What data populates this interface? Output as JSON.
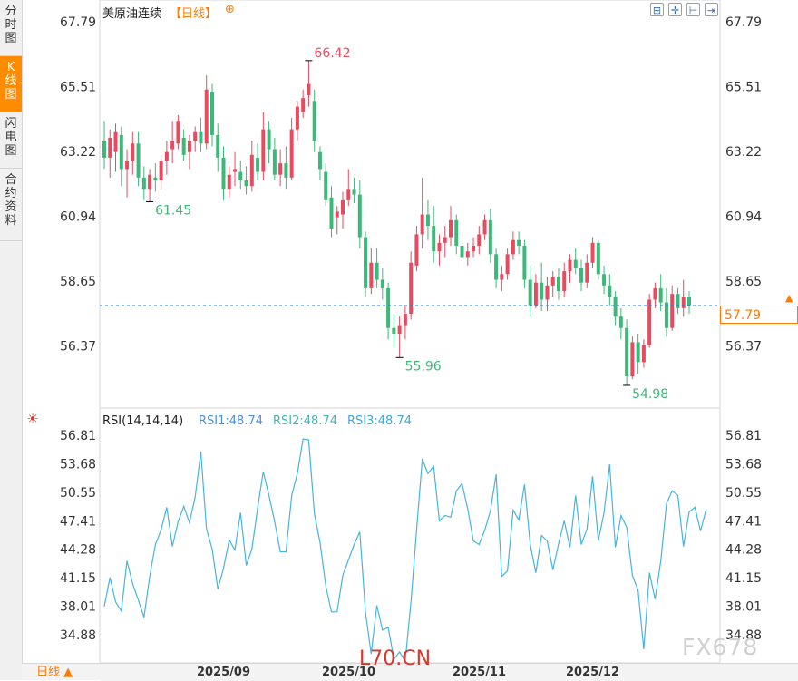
{
  "sidebar": {
    "tabs": [
      {
        "label": "分时图",
        "active": false
      },
      {
        "label": "K线图",
        "active": true
      },
      {
        "label": "闪电图",
        "active": false
      },
      {
        "label": "合约资料",
        "active": false
      }
    ]
  },
  "header": {
    "title": "美原油连续",
    "period": "【日线】",
    "add_symbol": "⊕",
    "toolbar_icons": [
      "fit-screen-icon",
      "crosshair-icon",
      "scroll-start-icon",
      "scroll-end-icon"
    ]
  },
  "price_axis": {
    "ticks": [
      "67.79",
      "65.51",
      "63.22",
      "60.94",
      "58.65",
      "56.37"
    ],
    "current_price": "57.79"
  },
  "annotations": {
    "high": "66.42",
    "left_low": "61.45",
    "mid_low": "55.96",
    "recent_low": "54.98"
  },
  "rsi": {
    "label": "RSI(14,14,14)",
    "rsi1": "RSI1:48.74",
    "rsi2": "RSI2:48.74",
    "rsi3": "RSI3:48.74",
    "ticks": [
      "56.81",
      "53.68",
      "50.55",
      "47.41",
      "44.28",
      "41.15",
      "38.01",
      "34.88"
    ]
  },
  "footer": {
    "period_button": "日线 ▲",
    "dates": [
      "2025/09",
      "2025/10",
      "2025/11",
      "2025/12"
    ]
  },
  "watermarks": {
    "site": "L70.CN",
    "brand": "FX678"
  },
  "colors": {
    "up": "#e84a5f",
    "down": "#3cb878",
    "rsi_line": "#45b4e0",
    "accent": "#ff7a00",
    "current_line": "#2a7fd4"
  },
  "chart_data": [
    {
      "type": "candlestick",
      "title": "美原油连续",
      "ylim": [
        54.5,
        68.3
      ],
      "x_labels": [
        "2025/09",
        "2025/10",
        "2025/11",
        "2025/12"
      ],
      "current_price": 57.79,
      "annotated_high": 66.42,
      "annotated_lows": [
        61.45,
        55.96,
        54.98
      ],
      "candles": [
        {
          "o": 63.6,
          "h": 64.3,
          "l": 62.6,
          "c": 63.0
        },
        {
          "o": 63.0,
          "h": 64.0,
          "l": 62.3,
          "c": 63.7
        },
        {
          "o": 63.2,
          "h": 64.2,
          "l": 62.5,
          "c": 63.9
        },
        {
          "o": 63.8,
          "h": 64.1,
          "l": 62.0,
          "c": 62.6
        },
        {
          "o": 62.6,
          "h": 63.3,
          "l": 61.6,
          "c": 62.9
        },
        {
          "o": 62.9,
          "h": 63.9,
          "l": 62.4,
          "c": 63.5
        },
        {
          "o": 63.5,
          "h": 63.9,
          "l": 62.0,
          "c": 62.3
        },
        {
          "o": 62.3,
          "h": 62.7,
          "l": 61.5,
          "c": 61.9
        },
        {
          "o": 61.9,
          "h": 62.6,
          "l": 61.45,
          "c": 62.4
        },
        {
          "o": 62.3,
          "h": 62.8,
          "l": 61.8,
          "c": 62.2
        },
        {
          "o": 62.2,
          "h": 63.1,
          "l": 61.9,
          "c": 62.9
        },
        {
          "o": 62.9,
          "h": 63.6,
          "l": 62.4,
          "c": 63.2
        },
        {
          "o": 63.3,
          "h": 64.3,
          "l": 62.8,
          "c": 63.6
        },
        {
          "o": 63.5,
          "h": 64.5,
          "l": 63.3,
          "c": 64.3
        },
        {
          "o": 63.7,
          "h": 64.0,
          "l": 62.9,
          "c": 63.1
        },
        {
          "o": 63.2,
          "h": 63.8,
          "l": 62.6,
          "c": 63.6
        },
        {
          "o": 63.6,
          "h": 64.1,
          "l": 63.2,
          "c": 63.9
        },
        {
          "o": 63.9,
          "h": 64.4,
          "l": 63.2,
          "c": 63.5
        },
        {
          "o": 63.5,
          "h": 65.9,
          "l": 63.3,
          "c": 65.4
        },
        {
          "o": 65.3,
          "h": 65.6,
          "l": 63.4,
          "c": 63.8
        },
        {
          "o": 63.8,
          "h": 64.2,
          "l": 62.5,
          "c": 63.0
        },
        {
          "o": 63.0,
          "h": 63.4,
          "l": 61.5,
          "c": 61.9
        },
        {
          "o": 61.9,
          "h": 62.7,
          "l": 61.6,
          "c": 62.4
        },
        {
          "o": 62.5,
          "h": 63.2,
          "l": 62.0,
          "c": 62.6
        },
        {
          "o": 62.5,
          "h": 62.9,
          "l": 61.9,
          "c": 62.2
        },
        {
          "o": 62.2,
          "h": 62.7,
          "l": 61.7,
          "c": 62.0
        },
        {
          "o": 62.0,
          "h": 63.6,
          "l": 61.8,
          "c": 63.1
        },
        {
          "o": 63.0,
          "h": 63.5,
          "l": 62.2,
          "c": 62.5
        },
        {
          "o": 62.5,
          "h": 64.6,
          "l": 62.2,
          "c": 64.0
        },
        {
          "o": 64.0,
          "h": 64.3,
          "l": 62.8,
          "c": 63.3
        },
        {
          "o": 63.3,
          "h": 63.7,
          "l": 62.2,
          "c": 62.4
        },
        {
          "o": 62.4,
          "h": 63.3,
          "l": 62.0,
          "c": 62.8
        },
        {
          "o": 62.8,
          "h": 63.4,
          "l": 61.9,
          "c": 62.3
        },
        {
          "o": 62.3,
          "h": 64.4,
          "l": 62.2,
          "c": 64.0
        },
        {
          "o": 64.0,
          "h": 65.0,
          "l": 63.6,
          "c": 64.8
        },
        {
          "o": 64.6,
          "h": 65.4,
          "l": 64.4,
          "c": 65.1
        },
        {
          "o": 65.2,
          "h": 66.42,
          "l": 64.8,
          "c": 65.6
        },
        {
          "o": 65.0,
          "h": 65.4,
          "l": 63.2,
          "c": 63.6
        },
        {
          "o": 63.2,
          "h": 63.4,
          "l": 62.2,
          "c": 62.6
        },
        {
          "o": 62.5,
          "h": 62.8,
          "l": 61.3,
          "c": 61.5
        },
        {
          "o": 61.6,
          "h": 62.0,
          "l": 60.2,
          "c": 60.5
        },
        {
          "o": 60.9,
          "h": 61.3,
          "l": 60.3,
          "c": 61.1
        },
        {
          "o": 61.0,
          "h": 61.8,
          "l": 60.5,
          "c": 61.5
        },
        {
          "o": 61.5,
          "h": 62.6,
          "l": 61.3,
          "c": 61.9
        },
        {
          "o": 61.9,
          "h": 62.3,
          "l": 61.4,
          "c": 61.7
        },
        {
          "o": 61.7,
          "h": 62.2,
          "l": 59.8,
          "c": 60.2
        },
        {
          "o": 60.2,
          "h": 60.4,
          "l": 58.1,
          "c": 58.4
        },
        {
          "o": 58.4,
          "h": 59.8,
          "l": 58.2,
          "c": 59.3
        },
        {
          "o": 59.3,
          "h": 59.8,
          "l": 58.4,
          "c": 58.7
        },
        {
          "o": 58.7,
          "h": 59.1,
          "l": 58.0,
          "c": 58.4
        },
        {
          "o": 58.4,
          "h": 58.6,
          "l": 56.6,
          "c": 57.0
        },
        {
          "o": 57.0,
          "h": 57.5,
          "l": 56.3,
          "c": 56.8
        },
        {
          "o": 56.8,
          "h": 57.4,
          "l": 55.96,
          "c": 57.1
        },
        {
          "o": 57.1,
          "h": 57.8,
          "l": 56.6,
          "c": 57.5
        },
        {
          "o": 57.5,
          "h": 59.7,
          "l": 57.3,
          "c": 59.3
        },
        {
          "o": 59.2,
          "h": 60.6,
          "l": 59.0,
          "c": 60.3
        },
        {
          "o": 60.3,
          "h": 62.3,
          "l": 59.8,
          "c": 61.0
        },
        {
          "o": 61.0,
          "h": 61.5,
          "l": 60.1,
          "c": 60.6
        },
        {
          "o": 60.6,
          "h": 61.3,
          "l": 59.3,
          "c": 59.7
        },
        {
          "o": 59.7,
          "h": 60.3,
          "l": 59.2,
          "c": 60.0
        },
        {
          "o": 60.0,
          "h": 60.6,
          "l": 59.5,
          "c": 60.2
        },
        {
          "o": 60.2,
          "h": 61.3,
          "l": 59.9,
          "c": 60.8
        },
        {
          "o": 60.8,
          "h": 61.0,
          "l": 59.6,
          "c": 59.9
        },
        {
          "o": 59.9,
          "h": 60.3,
          "l": 59.1,
          "c": 59.5
        },
        {
          "o": 59.5,
          "h": 60.0,
          "l": 59.2,
          "c": 59.7
        },
        {
          "o": 59.7,
          "h": 60.2,
          "l": 59.5,
          "c": 59.9
        },
        {
          "o": 59.9,
          "h": 60.6,
          "l": 59.6,
          "c": 60.3
        },
        {
          "o": 60.3,
          "h": 61.0,
          "l": 60.1,
          "c": 60.8
        },
        {
          "o": 60.8,
          "h": 61.2,
          "l": 59.3,
          "c": 59.6
        },
        {
          "o": 59.6,
          "h": 59.8,
          "l": 58.4,
          "c": 58.7
        },
        {
          "o": 58.7,
          "h": 59.2,
          "l": 58.3,
          "c": 58.9
        },
        {
          "o": 58.9,
          "h": 59.8,
          "l": 58.7,
          "c": 59.6
        },
        {
          "o": 59.6,
          "h": 60.4,
          "l": 59.4,
          "c": 60.1
        },
        {
          "o": 60.1,
          "h": 60.4,
          "l": 59.6,
          "c": 59.9
        },
        {
          "o": 59.9,
          "h": 60.1,
          "l": 58.4,
          "c": 58.7
        },
        {
          "o": 58.7,
          "h": 59.2,
          "l": 57.4,
          "c": 57.8
        },
        {
          "o": 57.8,
          "h": 58.9,
          "l": 57.7,
          "c": 58.6
        },
        {
          "o": 58.6,
          "h": 59.3,
          "l": 57.6,
          "c": 58.0
        },
        {
          "o": 58.0,
          "h": 58.8,
          "l": 57.6,
          "c": 58.5
        },
        {
          "o": 58.5,
          "h": 59.0,
          "l": 58.1,
          "c": 58.8
        },
        {
          "o": 58.8,
          "h": 59.1,
          "l": 58.0,
          "c": 58.3
        },
        {
          "o": 58.3,
          "h": 59.3,
          "l": 58.1,
          "c": 59.0
        },
        {
          "o": 59.0,
          "h": 59.6,
          "l": 58.6,
          "c": 59.4
        },
        {
          "o": 59.4,
          "h": 59.8,
          "l": 58.9,
          "c": 59.1
        },
        {
          "o": 59.1,
          "h": 59.4,
          "l": 58.3,
          "c": 58.6
        },
        {
          "o": 58.6,
          "h": 59.6,
          "l": 58.4,
          "c": 59.3
        },
        {
          "o": 59.3,
          "h": 60.2,
          "l": 59.1,
          "c": 60.0
        },
        {
          "o": 60.0,
          "h": 60.1,
          "l": 58.7,
          "c": 58.9
        },
        {
          "o": 58.9,
          "h": 59.2,
          "l": 58.2,
          "c": 58.5
        },
        {
          "o": 58.5,
          "h": 58.9,
          "l": 57.8,
          "c": 58.1
        },
        {
          "o": 58.1,
          "h": 58.3,
          "l": 57.1,
          "c": 57.4
        },
        {
          "o": 57.4,
          "h": 57.7,
          "l": 56.6,
          "c": 57.0
        },
        {
          "o": 57.0,
          "h": 57.3,
          "l": 54.98,
          "c": 55.3
        },
        {
          "o": 55.3,
          "h": 56.7,
          "l": 55.2,
          "c": 56.5
        },
        {
          "o": 56.5,
          "h": 56.8,
          "l": 55.4,
          "c": 55.8
        },
        {
          "o": 55.8,
          "h": 56.6,
          "l": 55.6,
          "c": 56.4
        },
        {
          "o": 56.4,
          "h": 58.2,
          "l": 56.3,
          "c": 58.0
        },
        {
          "o": 58.0,
          "h": 58.6,
          "l": 57.7,
          "c": 58.4
        },
        {
          "o": 58.4,
          "h": 58.9,
          "l": 57.6,
          "c": 57.9
        },
        {
          "o": 57.9,
          "h": 58.4,
          "l": 56.7,
          "c": 57.0
        },
        {
          "o": 57.0,
          "h": 58.5,
          "l": 56.9,
          "c": 58.2
        },
        {
          "o": 58.2,
          "h": 58.4,
          "l": 57.5,
          "c": 57.7
        },
        {
          "o": 57.7,
          "h": 58.7,
          "l": 57.4,
          "c": 58.1
        },
        {
          "o": 58.1,
          "h": 58.3,
          "l": 57.5,
          "c": 57.8
        }
      ]
    },
    {
      "type": "line",
      "title": "RSI(14,14,14)",
      "ylim": [
        32.5,
        57.8
      ],
      "series": [
        {
          "name": "RSI1",
          "values": [
            38.0,
            41.2,
            38.5,
            37.5,
            43.0,
            40.5,
            38.7,
            36.8,
            41.3,
            44.8,
            46.4,
            48.9,
            44.6,
            47.3,
            49.0,
            47.2,
            50.0,
            55.0,
            46.5,
            44.3,
            39.9,
            42.2,
            45.3,
            44.2,
            48.3,
            42.5,
            44.3,
            48.8,
            52.8,
            50.2,
            47.3,
            44.0,
            44.0,
            50.2,
            52.6,
            56.4,
            56.3,
            48.2,
            45.0,
            40.3,
            37.4,
            37.4,
            41.4,
            43.1,
            44.8,
            46.2,
            37.3,
            32.8,
            38.1,
            35.4,
            35.7,
            32.2,
            33.0,
            32.0,
            38.5,
            46.4,
            54.2,
            52.6,
            53.4,
            47.4,
            48.0,
            47.8,
            50.7,
            51.5,
            48.7,
            45.2,
            44.8,
            46.4,
            48.5,
            52.5,
            41.3,
            41.9,
            48.6,
            47.5,
            51.4,
            44.8,
            41.7,
            45.8,
            45.2,
            42.0,
            44.9,
            47.4,
            44.5,
            50.2,
            44.8,
            46.5,
            52.3,
            45.2,
            48.3,
            53.6,
            44.5,
            48.0,
            46.7,
            41.4,
            39.8,
            33.3,
            41.7,
            38.8,
            43.0,
            49.3,
            50.7,
            50.2,
            44.6,
            48.4,
            48.9,
            46.3,
            48.7
          ]
        }
      ]
    }
  ]
}
